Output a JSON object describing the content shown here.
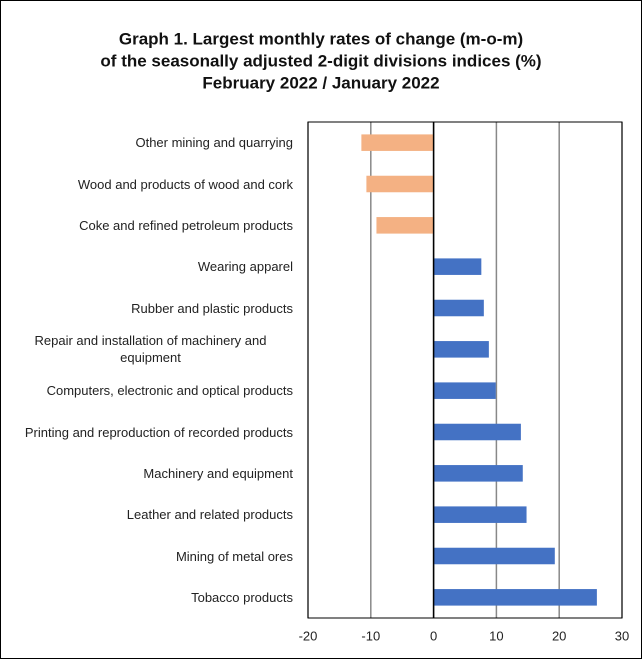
{
  "chart_data": {
    "type": "barh",
    "title": [
      "Graph 1. Largest monthly rates of change (m-o-m)",
      "of the seasonally adjusted 2-digit divisions indices (%)",
      "February 2022 / January 2022"
    ],
    "categories": [
      "Other mining and quarrying",
      "Wood and products of wood and cork",
      "Coke and refined petroleum products",
      "Wearing apparel",
      "Rubber and plastic products",
      "Repair and installation of machinery and equipment",
      "Computers, electronic and optical products",
      "Printing and reproduction of recorded products",
      "Machinery and equipment",
      "Leather and related products",
      "Mining of metal ores",
      "Tobacco products"
    ],
    "values": [
      -11.5,
      -10.7,
      -9.1,
      7.6,
      8.0,
      8.8,
      9.9,
      13.9,
      14.2,
      14.8,
      19.3,
      26.0
    ],
    "colors": [
      "#f4b183",
      "#f4b183",
      "#f4b183",
      "#4472c4",
      "#4472c4",
      "#4472c4",
      "#4472c4",
      "#4472c4",
      "#4472c4",
      "#4472c4",
      "#4472c4",
      "#4472c4"
    ],
    "xlim": [
      -20,
      30
    ],
    "xticks": [
      -20,
      -10,
      0,
      10,
      20,
      30
    ],
    "grid": true
  }
}
